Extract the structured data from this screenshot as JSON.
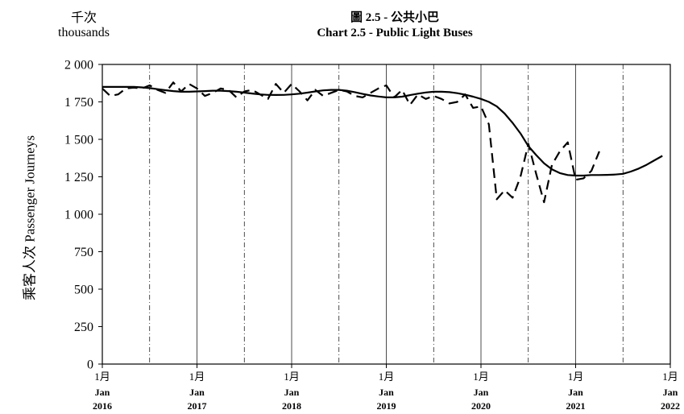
{
  "chart_data": {
    "type": "line",
    "title_zh": "圖 2.5 - 公共小巴",
    "title_en": "Chart 2.5 - Public Light Buses",
    "unit_zh": "千次",
    "unit_en": "thousands",
    "ylabel": "乘客人次  Passenger Journeys",
    "ylim": [
      0,
      2000
    ],
    "yticks": [
      "0",
      "250",
      "500",
      "750",
      "1 000",
      "1 250",
      "1 500",
      "1 750",
      "2 000"
    ],
    "xrange": [
      "2016-01",
      "2022-01"
    ],
    "xticks": [
      {
        "month_zh": "1月",
        "month_en": "Jan",
        "year": "2016"
      },
      {
        "month_zh": "1月",
        "month_en": "Jan",
        "year": "2017"
      },
      {
        "month_zh": "1月",
        "month_en": "Jan",
        "year": "2018"
      },
      {
        "month_zh": "1月",
        "month_en": "Jan",
        "year": "2019"
      },
      {
        "month_zh": "1月",
        "month_en": "Jan",
        "year": "2020"
      },
      {
        "month_zh": "1月",
        "month_en": "Jan",
        "year": "2021"
      },
      {
        "month_zh": "1月",
        "month_en": "Jan",
        "year": "2022"
      }
    ],
    "grid": {
      "january": "solid",
      "july": "dash-dot"
    },
    "series": [
      {
        "style": "dashed",
        "start": "2016-01",
        "values": [
          1840,
          1790,
          1800,
          1840,
          1845,
          1840,
          1860,
          1830,
          1810,
          1880,
          1820,
          1870,
          1840,
          1790,
          1810,
          1840,
          1830,
          1780,
          1820,
          1830,
          1800,
          1770,
          1870,
          1810,
          1870,
          1820,
          1760,
          1830,
          1790,
          1810,
          1830,
          1820,
          1790,
          1780,
          1810,
          1840,
          1860,
          1780,
          1830,
          1730,
          1800,
          1770,
          1790,
          1770,
          1740,
          1750,
          1800,
          1710,
          1720,
          1600,
          1100,
          1160,
          1110,
          1250,
          1470,
          1270,
          1080,
          1330,
          1420,
          1480,
          1230,
          1240,
          1290,
          1420
        ]
      },
      {
        "style": "solid",
        "start": "2016-01",
        "values": [
          1850,
          1850,
          1850,
          1850,
          1850,
          1847,
          1842,
          1835,
          1828,
          1822,
          1818,
          1818,
          1820,
          1822,
          1825,
          1825,
          1822,
          1818,
          1812,
          1806,
          1800,
          1797,
          1796,
          1797,
          1800,
          1805,
          1812,
          1820,
          1827,
          1830,
          1830,
          1825,
          1815,
          1803,
          1793,
          1786,
          1780,
          1780,
          1785,
          1795,
          1805,
          1813,
          1818,
          1818,
          1815,
          1808,
          1798,
          1785,
          1770,
          1750,
          1720,
          1672,
          1610,
          1540,
          1455,
          1395,
          1340,
          1300,
          1275,
          1262,
          1258,
          1258,
          1262,
          1262,
          1263,
          1265,
          1270,
          1285,
          1305,
          1330,
          1360,
          1390
        ]
      }
    ]
  }
}
